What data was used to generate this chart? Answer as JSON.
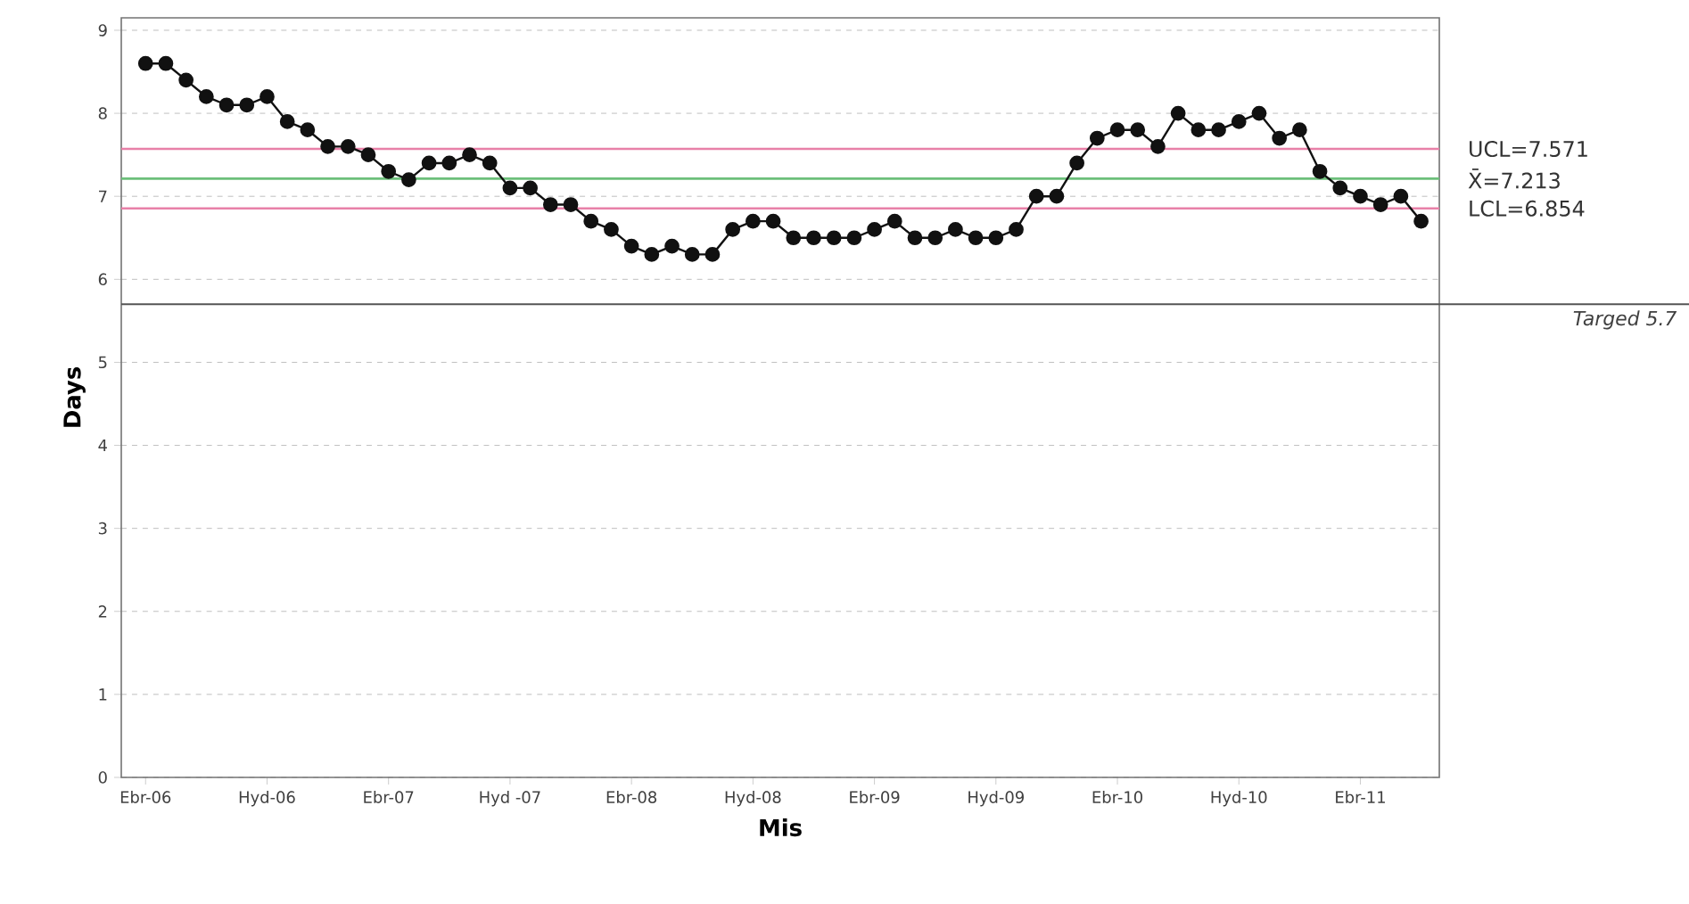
{
  "chart_data": {
    "type": "line",
    "xlabel": "Mis",
    "ylabel": "Days",
    "categories": [
      "Ebr-06",
      null,
      null,
      null,
      null,
      null,
      "Hyd-06",
      null,
      null,
      null,
      null,
      null,
      "Ebr-07",
      null,
      null,
      null,
      null,
      null,
      "Hyd -07",
      null,
      null,
      null,
      null,
      null,
      "Ebr-08",
      null,
      null,
      null,
      null,
      null,
      "Hyd-08",
      null,
      null,
      null,
      null,
      null,
      "Ebr-09",
      null,
      null,
      null,
      null,
      null,
      "Hyd-09",
      null,
      null,
      null,
      null,
      null,
      "Ebr-10",
      null,
      null,
      null,
      null,
      null,
      "Hyd-10",
      null,
      null,
      null,
      null,
      null,
      "Ebr-11",
      null,
      null,
      null
    ],
    "series": [
      {
        "color": "#111111",
        "values": [
          8.6,
          8.6,
          8.4,
          8.2,
          8.1,
          8.1,
          8.2,
          7.9,
          7.8,
          7.6,
          7.6,
          7.5,
          7.3,
          7.2,
          7.4,
          7.4,
          7.5,
          7.4,
          7.1,
          7.1,
          6.9,
          6.9,
          6.7,
          6.6,
          6.4,
          6.3,
          6.4,
          6.3,
          6.3,
          6.6,
          6.7,
          6.7,
          6.5,
          6.5,
          6.5,
          6.5,
          6.6,
          6.7,
          6.5,
          6.5,
          6.6,
          6.5,
          6.5,
          6.6,
          7.0,
          7.0,
          7.4,
          7.7,
          7.8,
          7.8,
          7.6,
          8.0,
          7.8,
          7.8,
          7.9,
          8.0,
          7.7,
          7.8,
          7.3,
          7.1,
          7.0,
          6.9,
          7.0,
          6.7
        ]
      }
    ],
    "ylim": [
      0,
      9.15
    ],
    "yticks": [
      0,
      1,
      2,
      3,
      4,
      5,
      6,
      7,
      8,
      9
    ],
    "grid": "y",
    "marker": "circle",
    "line_style": "solid",
    "ref_lines": [
      {
        "axis": "y",
        "value": 7.571,
        "label": "UCL=7.571",
        "color": "#e880a8"
      },
      {
        "axis": "y",
        "value": 7.213,
        "label": "X̄=7.213",
        "color": "#6cbf7a"
      },
      {
        "axis": "y",
        "value": 6.854,
        "label": "LCL=6.854",
        "color": "#e880a8"
      },
      {
        "axis": "y",
        "value": 5.7,
        "label": "Targed 5.7",
        "color": "#555555"
      }
    ]
  }
}
